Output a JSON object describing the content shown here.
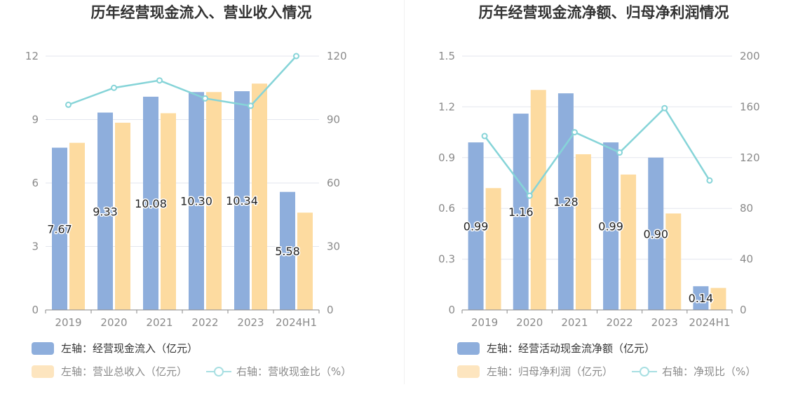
{
  "chart_data": [
    {
      "type": "bar",
      "title": "历年经营现金流入、营业收入情况",
      "categories": [
        "2019",
        "2020",
        "2021",
        "2022",
        "2023",
        "2024H1"
      ],
      "y_left": {
        "ylim": [
          0,
          12
        ],
        "ticks": [
          "0",
          "3",
          "6",
          "9",
          "12"
        ]
      },
      "y_right": {
        "ylim": [
          0,
          120
        ],
        "ticks": [
          "0",
          "30",
          "60",
          "90",
          "120"
        ]
      },
      "series": [
        {
          "name": "左轴：经营现金流入（亿元）",
          "type": "bar",
          "axis": "left",
          "color": "#8eaedc",
          "values": [
            7.67,
            9.33,
            10.08,
            10.3,
            10.34,
            5.58
          ],
          "labels": [
            "7.67",
            "9.33",
            "10.08",
            "10.30",
            "10.34",
            "5.58"
          ]
        },
        {
          "name": "左轴：营业总收入（亿元）",
          "type": "bar",
          "axis": "left",
          "color": "#fddba0",
          "values": [
            7.9,
            8.85,
            9.3,
            10.3,
            10.7,
            4.6
          ]
        },
        {
          "name": "右轴：营收现金比（%）",
          "type": "line",
          "axis": "right",
          "color": "#86d4d8",
          "values": [
            97,
            105,
            108.5,
            100,
            96.5,
            120
          ]
        }
      ],
      "grid": true,
      "legend_position": "bottom-left"
    },
    {
      "type": "bar",
      "title": "历年经营现金流净额、归母净利润情况",
      "categories": [
        "2019",
        "2020",
        "2021",
        "2022",
        "2023",
        "2024H1"
      ],
      "y_left": {
        "ylim": [
          0,
          1.5
        ],
        "ticks": [
          "0",
          "0.3",
          "0.6",
          "0.9",
          "1.2",
          "1.5"
        ]
      },
      "y_right": {
        "ylim": [
          0,
          200
        ],
        "ticks": [
          "0",
          "40",
          "80",
          "120",
          "160",
          "200"
        ]
      },
      "series": [
        {
          "name": "左轴：经营活动现金流净额（亿元）",
          "type": "bar",
          "axis": "left",
          "color": "#8eaedc",
          "values": [
            0.99,
            1.16,
            1.28,
            0.99,
            0.9,
            0.14
          ],
          "labels": [
            "0.99",
            "1.16",
            "1.28",
            "0.99",
            "0.90",
            "0.14"
          ]
        },
        {
          "name": "左轴：归母净利润（亿元）",
          "type": "bar",
          "axis": "left",
          "color": "#fddba0",
          "values": [
            0.72,
            1.3,
            0.92,
            0.8,
            0.57,
            0.13
          ]
        },
        {
          "name": "右轴：净现比（%）",
          "type": "line",
          "axis": "right",
          "color": "#86d4d8",
          "values": [
            137,
            90,
            140,
            124,
            159,
            102
          ]
        }
      ],
      "grid": true,
      "legend_position": "bottom-left"
    }
  ]
}
